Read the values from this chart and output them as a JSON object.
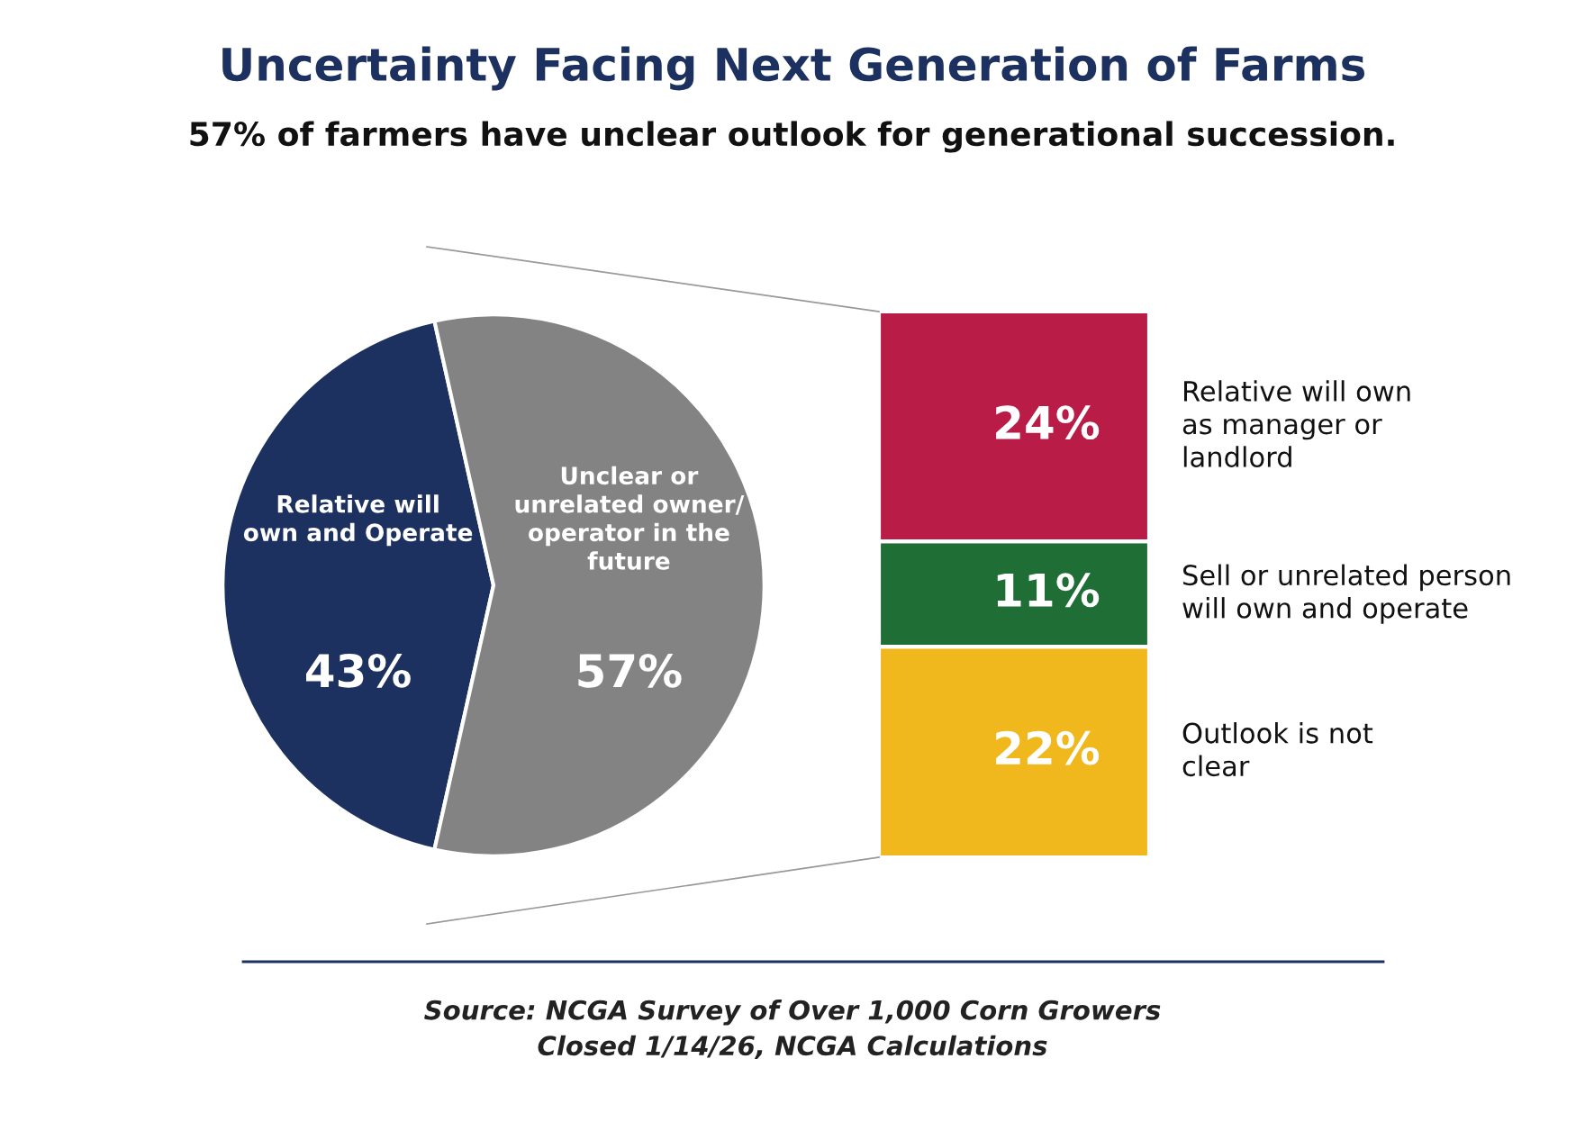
{
  "chart_data": [
    {
      "type": "pie",
      "title": "Uncertainty Facing Next Generation of Farms",
      "subtitle": "57% of farmers have unclear outlook for generational succession.",
      "categories": [
        "Relative will\nown and Operate",
        "Unclear or\nunrelated owner/\noperator in the\nfuture"
      ],
      "values": [
        43,
        57
      ],
      "colors": [
        "#1d3160",
        "#838383"
      ],
      "value_labels": [
        "43%",
        "57%"
      ],
      "annotations": [
        "Source: NCGA Survey of Over 1,000 Corn Growers\nClosed 1/14/26, NCGA Calculations"
      ]
    },
    {
      "type": "bar",
      "stacked": true,
      "tick_labels": false,
      "categories": [
        null
      ],
      "series": [
        {
          "name": "Outlook is not\nclear",
          "color": "#f0b81c",
          "values": [
            22
          ],
          "value_labels": [
            "22%"
          ]
        },
        {
          "name": "Sell or unrelated person\nwill own and operate",
          "color": "#1f6e35",
          "values": [
            11
          ],
          "value_labels": [
            "11%"
          ]
        },
        {
          "name": "Relative will own\nas manager or\nlandlord",
          "color": "#b81c47",
          "values": [
            24
          ],
          "value_labels": [
            "24%"
          ]
        }
      ]
    }
  ]
}
